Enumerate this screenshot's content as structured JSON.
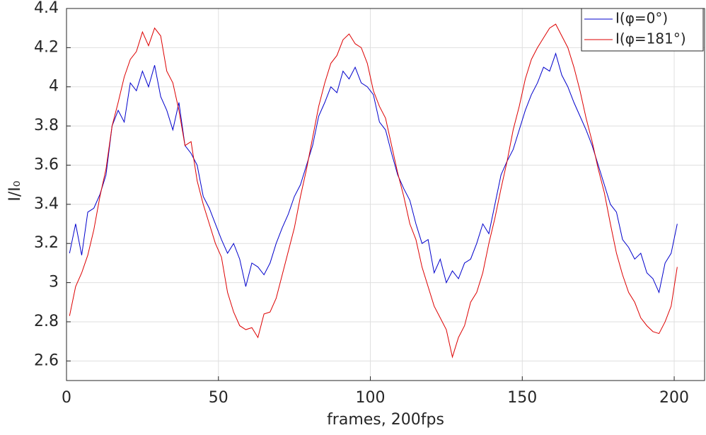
{
  "chart_data": {
    "type": "line",
    "xlabel": "frames, 200fps",
    "ylabel": "I/I₀",
    "x": [
      1,
      3,
      5,
      7,
      9,
      11,
      13,
      15,
      17,
      19,
      21,
      23,
      25,
      27,
      29,
      31,
      33,
      35,
      37,
      39,
      41,
      43,
      45,
      47,
      49,
      51,
      53,
      55,
      57,
      59,
      61,
      63,
      65,
      67,
      69,
      71,
      73,
      75,
      77,
      79,
      81,
      83,
      85,
      87,
      89,
      91,
      93,
      95,
      97,
      99,
      101,
      103,
      105,
      107,
      109,
      111,
      113,
      115,
      117,
      119,
      121,
      123,
      125,
      127,
      129,
      131,
      133,
      135,
      137,
      139,
      141,
      143,
      145,
      147,
      149,
      151,
      153,
      155,
      157,
      159,
      161,
      163,
      165,
      167,
      169,
      171,
      173,
      175,
      177,
      179,
      181,
      183,
      185,
      187,
      189,
      191,
      193,
      195,
      197,
      199,
      201
    ],
    "series": [
      {
        "name": "I(φ=0°)",
        "color": "#0000cc",
        "values": [
          3.15,
          3.3,
          3.14,
          3.36,
          3.38,
          3.45,
          3.55,
          3.8,
          3.88,
          3.82,
          4.02,
          3.98,
          4.08,
          4.0,
          4.11,
          3.95,
          3.88,
          3.78,
          3.92,
          3.7,
          3.66,
          3.6,
          3.44,
          3.38,
          3.3,
          3.22,
          3.15,
          3.2,
          3.12,
          2.98,
          3.1,
          3.08,
          3.04,
          3.1,
          3.2,
          3.28,
          3.35,
          3.44,
          3.5,
          3.6,
          3.7,
          3.85,
          3.92,
          4.0,
          3.97,
          4.08,
          4.04,
          4.1,
          4.02,
          4.0,
          3.96,
          3.82,
          3.78,
          3.66,
          3.55,
          3.48,
          3.42,
          3.3,
          3.2,
          3.22,
          3.05,
          3.12,
          3.0,
          3.06,
          3.02,
          3.1,
          3.12,
          3.2,
          3.3,
          3.25,
          3.4,
          3.55,
          3.62,
          3.68,
          3.78,
          3.88,
          3.96,
          4.02,
          4.1,
          4.08,
          4.17,
          4.06,
          4.0,
          3.92,
          3.85,
          3.78,
          3.7,
          3.6,
          3.5,
          3.4,
          3.36,
          3.22,
          3.18,
          3.12,
          3.15,
          3.05,
          3.02,
          2.95,
          3.1,
          3.15,
          3.3
        ]
      },
      {
        "name": "I(φ=181°)",
        "color": "#dd0000",
        "values": [
          2.83,
          2.98,
          3.05,
          3.14,
          3.27,
          3.44,
          3.58,
          3.8,
          3.92,
          4.05,
          4.14,
          4.18,
          4.28,
          4.21,
          4.3,
          4.26,
          4.08,
          4.02,
          3.88,
          3.7,
          3.72,
          3.52,
          3.4,
          3.3,
          3.2,
          3.13,
          2.95,
          2.85,
          2.78,
          2.76,
          2.77,
          2.72,
          2.84,
          2.85,
          2.92,
          3.04,
          3.16,
          3.28,
          3.44,
          3.58,
          3.74,
          3.9,
          4.02,
          4.12,
          4.16,
          4.24,
          4.27,
          4.22,
          4.2,
          4.12,
          3.98,
          3.9,
          3.84,
          3.7,
          3.56,
          3.44,
          3.3,
          3.22,
          3.08,
          2.98,
          2.88,
          2.82,
          2.76,
          2.62,
          2.72,
          2.78,
          2.9,
          2.95,
          3.05,
          3.2,
          3.33,
          3.48,
          3.62,
          3.78,
          3.9,
          4.04,
          4.14,
          4.2,
          4.25,
          4.3,
          4.32,
          4.26,
          4.2,
          4.1,
          3.98,
          3.84,
          3.72,
          3.58,
          3.46,
          3.3,
          3.15,
          3.04,
          2.95,
          2.9,
          2.82,
          2.78,
          2.75,
          2.74,
          2.8,
          2.88,
          3.08
        ]
      }
    ],
    "xlim": [
      0,
      210
    ],
    "xticks": [
      0,
      50,
      100,
      150,
      200
    ],
    "ylim": [
      2.5,
      4.4
    ],
    "yticks": [
      2.6,
      2.8,
      3,
      3.2,
      3.4,
      3.6,
      3.8,
      4,
      4.2,
      4.4
    ],
    "grid": true,
    "legend": "upper-right"
  }
}
